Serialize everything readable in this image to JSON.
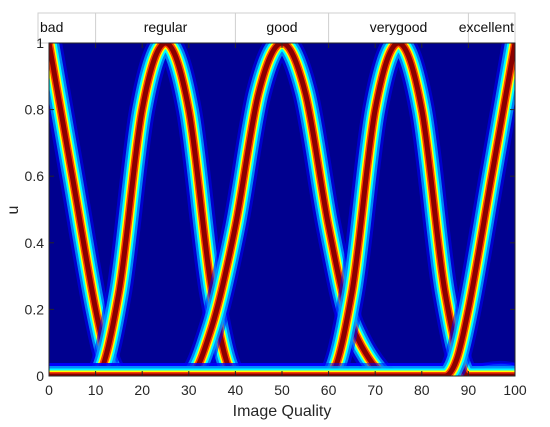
{
  "chart_data": {
    "type": "heatmap",
    "xlabel": "Image Quality",
    "ylabel": "u",
    "xlim": [
      0,
      100
    ],
    "ylim": [
      0,
      1
    ],
    "xticks": [
      "0",
      "10",
      "20",
      "30",
      "40",
      "50",
      "60",
      "70",
      "80",
      "90",
      "100"
    ],
    "yticks": [
      "0",
      "0.2",
      "0.4",
      "0.6",
      "0.8",
      "1"
    ],
    "grid": false,
    "legend": "none",
    "colormap": [
      "#00008f",
      "#0000ff",
      "#00ffff",
      "#ffff00",
      "#ff0000",
      "#800000"
    ],
    "background_color": "#00008f",
    "categories": [
      {
        "name": "bad",
        "center": 0,
        "range": [
          0,
          10
        ]
      },
      {
        "name": "regular",
        "center": 25,
        "range": [
          10,
          40
        ]
      },
      {
        "name": "good",
        "center": 50,
        "range": [
          40,
          60
        ]
      },
      {
        "name": "verygood",
        "center": 75,
        "range": [
          60,
          90
        ]
      },
      {
        "name": "excellent",
        "center": 100,
        "range": [
          90,
          100
        ]
      }
    ],
    "band_separators": [
      10,
      40,
      60,
      90
    ],
    "series": [
      {
        "name": "bad",
        "x": [
          0,
          5,
          10,
          12.5,
          15,
          20,
          25,
          100
        ],
        "y": [
          1,
          0.6,
          0.2,
          0.05,
          0,
          0,
          0,
          0
        ]
      },
      {
        "name": "regular",
        "x": [
          0,
          10,
          15,
          20,
          25,
          30,
          35,
          40,
          50,
          100
        ],
        "y": [
          0,
          0,
          0.25,
          0.8,
          1,
          0.8,
          0.25,
          0,
          0,
          0
        ]
      },
      {
        "name": "good",
        "x": [
          0,
          30,
          35,
          40,
          45,
          50,
          55,
          60,
          65,
          100
        ],
        "y": [
          0,
          0,
          0.15,
          0.45,
          0.85,
          1,
          0.85,
          0.45,
          0.15,
          0
        ]
      },
      {
        "name": "verygood",
        "x": [
          0,
          60,
          65,
          70,
          75,
          80,
          85,
          90,
          100
        ],
        "y": [
          0,
          0,
          0.25,
          0.8,
          1,
          0.8,
          0.25,
          0,
          0
        ]
      },
      {
        "name": "excellent",
        "x": [
          0,
          85,
          87.5,
          90,
          95,
          100
        ],
        "y": [
          0,
          0,
          0.05,
          0.2,
          0.6,
          1
        ]
      }
    ]
  }
}
